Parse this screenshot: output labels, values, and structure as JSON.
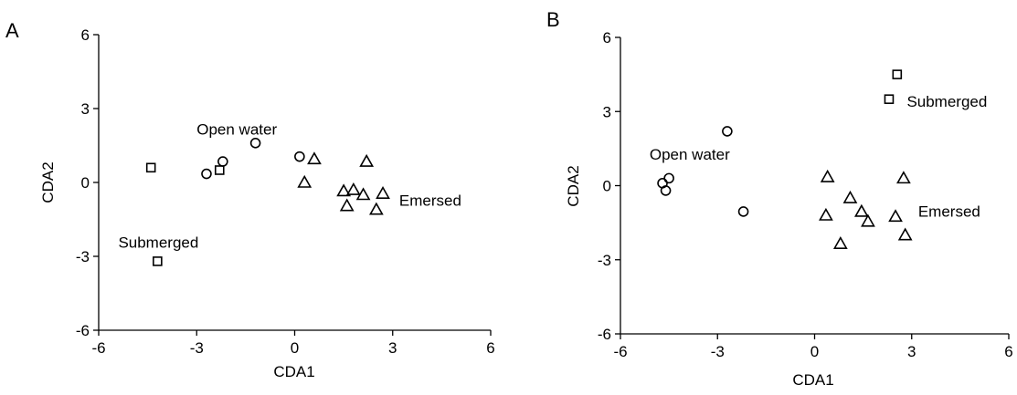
{
  "chart_data": [
    {
      "type": "scatter",
      "panel_label": "A",
      "xlabel": "CDA1",
      "ylabel": "CDA2",
      "xlim": [
        -6,
        6
      ],
      "ylim": [
        -6,
        6
      ],
      "xticks": [
        -6,
        -3,
        0,
        3,
        6
      ],
      "yticks": [
        -6,
        -3,
        0,
        3,
        6
      ],
      "xtick_labels": [
        "-6",
        "-3",
        "0",
        "3",
        "6"
      ],
      "ytick_labels": [
        "-6",
        "-3",
        "0",
        "3",
        "6"
      ],
      "grid": false,
      "series": [
        {
          "marker": "square",
          "group": "submerged",
          "points": [
            [
              -4.4,
              0.6
            ],
            [
              -4.2,
              -3.2
            ],
            [
              -2.3,
              0.5
            ]
          ]
        },
        {
          "marker": "circle",
          "group": "open-water",
          "points": [
            [
              -2.7,
              0.35
            ],
            [
              -2.2,
              0.85
            ],
            [
              -1.2,
              1.6
            ],
            [
              0.15,
              1.05
            ]
          ]
        },
        {
          "marker": "triangle",
          "group": "emersed",
          "points": [
            [
              0.6,
              0.95
            ],
            [
              0.3,
              0.0
            ],
            [
              1.5,
              -0.35
            ],
            [
              1.6,
              -0.95
            ],
            [
              1.8,
              -0.3
            ],
            [
              2.1,
              -0.5
            ],
            [
              2.2,
              0.85
            ],
            [
              2.5,
              -1.1
            ],
            [
              2.7,
              -0.45
            ]
          ]
        }
      ],
      "annotations": [
        {
          "text": "Open water",
          "x": -3.0,
          "y": 1.95
        },
        {
          "text": "Submerged",
          "x": -5.4,
          "y": -2.65
        },
        {
          "text": "Emersed",
          "x": 3.2,
          "y": -0.95
        }
      ]
    },
    {
      "type": "scatter",
      "panel_label": "B",
      "xlabel": "CDA1",
      "ylabel": "CDA2",
      "xlim": [
        -6,
        6
      ],
      "ylim": [
        -6,
        6
      ],
      "xticks": [
        -6,
        -3,
        0,
        3,
        6
      ],
      "yticks": [
        -6,
        -3,
        0,
        3,
        6
      ],
      "xtick_labels": [
        "-6",
        "-3",
        "0",
        "3",
        "6"
      ],
      "ytick_labels": [
        "-6",
        "-3",
        "0",
        "3",
        "6"
      ],
      "grid": false,
      "series": [
        {
          "marker": "square",
          "group": "submerged",
          "points": [
            [
              2.55,
              4.5
            ],
            [
              2.3,
              3.5
            ]
          ]
        },
        {
          "marker": "circle",
          "group": "open-water",
          "points": [
            [
              -2.7,
              2.2
            ],
            [
              -4.7,
              0.1
            ],
            [
              -4.5,
              0.3
            ],
            [
              -4.6,
              -0.2
            ],
            [
              -2.2,
              -1.05
            ]
          ]
        },
        {
          "marker": "triangle",
          "group": "emersed",
          "points": [
            [
              0.4,
              0.35
            ],
            [
              0.35,
              -1.2
            ],
            [
              0.8,
              -2.35
            ],
            [
              1.1,
              -0.5
            ],
            [
              1.45,
              -1.05
            ],
            [
              1.65,
              -1.45
            ],
            [
              2.5,
              -1.25
            ],
            [
              2.75,
              0.3
            ],
            [
              2.8,
              -2.0
            ]
          ]
        }
      ],
      "annotations": [
        {
          "text": "Submerged",
          "x": 2.85,
          "y": 3.2
        },
        {
          "text": "Open water",
          "x": -5.1,
          "y": 1.05
        },
        {
          "text": "Emersed",
          "x": 3.2,
          "y": -1.25
        }
      ]
    }
  ]
}
